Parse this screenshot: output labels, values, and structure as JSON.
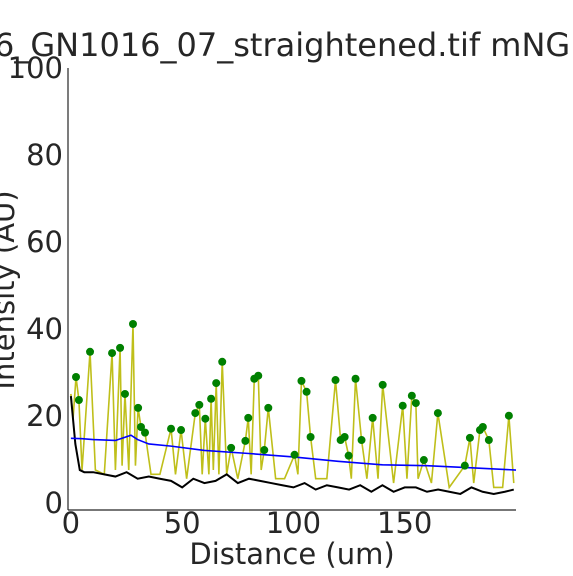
{
  "chart_data": {
    "type": "line",
    "title": "6_GN1016_07_straightened.tif mNG",
    "x_label": "Distance (um)",
    "y_label": "Intensity (AU)",
    "xlim": [
      -1.3,
      200
    ],
    "ylim": [
      -1.2,
      100.5
    ],
    "xticks": [
      0,
      50,
      100,
      150
    ],
    "yticks": [
      0,
      20,
      40,
      60,
      80,
      100
    ],
    "grid": false,
    "series": [
      {
        "color": "#bfbf1a",
        "style": "line",
        "x": [
          0,
          1,
          2.3,
          3.6,
          5,
          8.6,
          11,
          15,
          18.5,
          20,
          22.1,
          23,
          24.3,
          26,
          27.9,
          29,
          30.2,
          31.5,
          33.3,
          36,
          40,
          45,
          47,
          49.5,
          52,
          55.9,
          57.7,
          59,
          60.4,
          62,
          63,
          64,
          65.3,
          66.5,
          68,
          70,
          72,
          75,
          78.4,
          79.7,
          81,
          82.4,
          84.2,
          85.5,
          86.9,
          88.7,
          92,
          96,
          100.5,
          102,
          103.6,
          105.9,
          107.7,
          110,
          115,
          118.9,
          121.2,
          123,
          124.8,
          126,
          127.9,
          130.6,
          133,
          135.6,
          138,
          140.1,
          145,
          149.1,
          151,
          153.2,
          155,
          156,
          158.6,
          162,
          164.9,
          170,
          177,
          179.3,
          181,
          183.8,
          185.1,
          187.8,
          190,
          194,
          196.8,
          199
        ],
        "values": [
          25.5,
          20,
          29.4,
          24.1,
          8,
          35.2,
          8,
          7,
          34.9,
          8,
          36.1,
          9,
          25.5,
          8,
          41.6,
          9,
          22.3,
          17.9,
          16.6,
          7,
          7,
          17.5,
          7,
          17.2,
          6,
          21.1,
          23,
          7,
          19.8,
          7,
          24.4,
          8,
          28,
          7,
          32.9,
          7,
          13.1,
          6,
          14.7,
          20,
          7,
          29,
          29.7,
          8,
          12.6,
          22.3,
          6,
          6,
          11.5,
          7,
          28.5,
          26,
          15.6,
          6,
          6,
          28.7,
          14.9,
          15.6,
          11.3,
          6,
          29,
          14.9,
          6,
          20,
          6,
          27.6,
          5,
          22.8,
          6,
          25.1,
          23.4,
          6,
          10.3,
          5,
          21.1,
          4,
          9,
          15.4,
          5,
          17.2,
          17.9,
          14.9,
          4,
          4,
          20.5,
          5
        ]
      },
      {
        "color": "#000000",
        "style": "line",
        "x": [
          0,
          2,
          4,
          6,
          10,
          15,
          20,
          25,
          30,
          35,
          40,
          45,
          50,
          55,
          60,
          65,
          70,
          75,
          80,
          85,
          90,
          95,
          100,
          105,
          110,
          115,
          120,
          125,
          130,
          135,
          140,
          145,
          150,
          155,
          160,
          165,
          170,
          175,
          180,
          185,
          190,
          195,
          199
        ],
        "values": [
          25,
          14,
          8,
          7.5,
          7.5,
          7,
          6.5,
          7.5,
          6,
          6.5,
          6,
          5.5,
          4,
          6,
          5,
          5.5,
          7,
          5,
          6,
          5.5,
          5,
          4.5,
          4,
          5,
          3.5,
          4.5,
          4,
          3.5,
          4.5,
          3,
          4.5,
          3,
          4,
          4,
          3,
          3.5,
          3,
          2.5,
          4,
          3,
          2.5,
          3,
          3.5
        ]
      },
      {
        "color": "#0000ff",
        "style": "line",
        "x": [
          0,
          5,
          10,
          20,
          27,
          30,
          35,
          45,
          60,
          80,
          100,
          120,
          140,
          160,
          180,
          200
        ],
        "values": [
          15.3,
          15.2,
          15,
          14.8,
          16,
          15,
          14,
          13.5,
          12.5,
          11.8,
          11,
          10,
          9.2,
          9,
          8.5,
          8
        ]
      },
      {
        "color": "#008000",
        "style": "points",
        "x": [
          2.3,
          3.6,
          8.6,
          18.5,
          22.1,
          24.3,
          27.9,
          30.2,
          31.5,
          33.3,
          45,
          49.5,
          55.9,
          57.7,
          60.4,
          63,
          65.3,
          68,
          72,
          78.4,
          79.7,
          82.4,
          84.2,
          86.9,
          88.7,
          100.5,
          103.6,
          105.9,
          107.7,
          118.9,
          121.2,
          123,
          124.8,
          127.9,
          130.6,
          135.6,
          140.1,
          149.1,
          153.2,
          155,
          158.6,
          164.9,
          177,
          179.3,
          183.8,
          185.1,
          187.8,
          196.8
        ],
        "values": [
          29.4,
          24.1,
          35.2,
          34.9,
          36.1,
          25.5,
          41.6,
          22.3,
          17.9,
          16.6,
          17.5,
          17.2,
          21.1,
          23,
          19.8,
          24.4,
          28,
          32.9,
          13.1,
          14.7,
          20,
          29,
          29.7,
          12.6,
          22.3,
          11.5,
          28.5,
          26,
          15.6,
          28.7,
          14.9,
          15.6,
          11.3,
          29,
          14.9,
          20,
          27.6,
          22.8,
          25.1,
          23.4,
          10.3,
          21.1,
          9,
          15.4,
          17.2,
          17.9,
          14.9,
          20.5
        ]
      }
    ]
  }
}
